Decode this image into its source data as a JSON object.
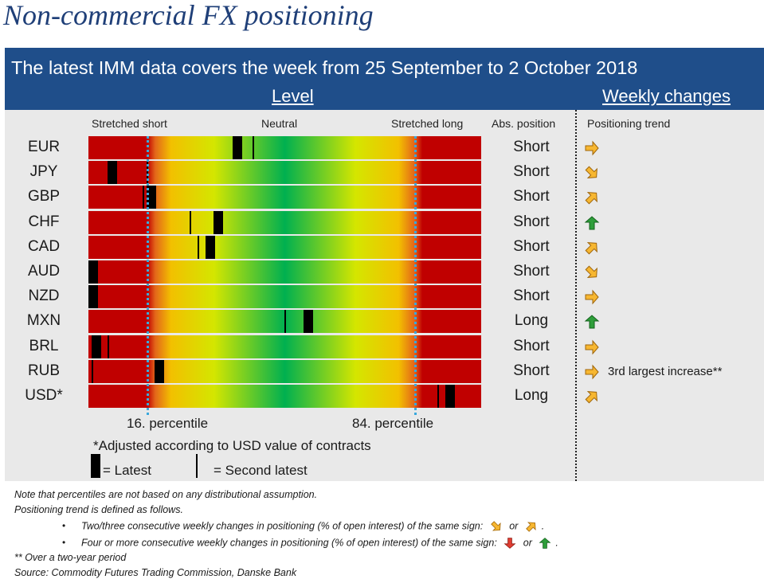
{
  "title": "Non-commercial FX positioning",
  "banner": "The latest IMM data covers the week from 25 September to 2 October 2018",
  "headers": {
    "level": "Level",
    "weekly_changes": "Weekly changes"
  },
  "column_headers": {
    "stretched_short": "Stretched short",
    "neutral": "Neutral",
    "stretched_long": "Stretched long",
    "abs_position": "Abs. position",
    "positioning_trend": "Positioning trend"
  },
  "chart_data": {
    "type": "table",
    "scale": "percentile of positioning (0 = stretched short, 50 = neutral, 100 = stretched long)",
    "percentile_markers": [
      16,
      84
    ],
    "rows": [
      {
        "ccy": "EUR",
        "latest": 38,
        "second": 42,
        "abs": "Short",
        "trend": "right"
      },
      {
        "ccy": "JPY",
        "latest": 6,
        "second": 15,
        "abs": "Short",
        "trend": "down-right"
      },
      {
        "ccy": "GBP",
        "latest": 16,
        "second": 14,
        "abs": "Short",
        "trend": "up-right"
      },
      {
        "ccy": "CHF",
        "latest": 33,
        "second": 26,
        "abs": "Short",
        "trend": "up"
      },
      {
        "ccy": "CAD",
        "latest": 31,
        "second": 28,
        "abs": "Short",
        "trend": "up-right"
      },
      {
        "ccy": "AUD",
        "latest": 1,
        "second": null,
        "abs": "Short",
        "trend": "down-right"
      },
      {
        "ccy": "NZD",
        "latest": 1,
        "second": null,
        "abs": "Short",
        "trend": "right"
      },
      {
        "ccy": "MXN",
        "latest": 56,
        "second": 50,
        "abs": "Long",
        "trend": "up"
      },
      {
        "ccy": "BRL",
        "latest": 2,
        "second": 5,
        "abs": "Short",
        "trend": "right"
      },
      {
        "ccy": "RUB",
        "latest": 18,
        "second": 1,
        "abs": "Short",
        "trend": "right",
        "note": "3rd largest increase**"
      },
      {
        "ccy": "USD*",
        "latest": 92,
        "second": 89,
        "abs": "Long",
        "trend": "up-right"
      }
    ]
  },
  "percentile_labels": {
    "p16": "16. percentile",
    "p84": "84. percentile"
  },
  "footnote": "*Adjusted according to USD value of contracts",
  "legend": {
    "latest": "= Latest",
    "second_latest": "= Second latest"
  },
  "notes": {
    "line1": "Note that percentiles are not based on any distributional assumption.",
    "line2": "Positioning trend is defined as follows.",
    "bullet1": "Two/three consecutive weekly changes in positioning (% of open interest) of the same sign:",
    "bullet2": "Four or more consecutive weekly changes in positioning (% of open interest) of the same sign:",
    "or_word": "or",
    "double_star": "** Over a two-year period",
    "source": "Source:  Commodity Futures Trading Commission, Danske Bank"
  },
  "bullet_char": "•",
  "period_char": "."
}
